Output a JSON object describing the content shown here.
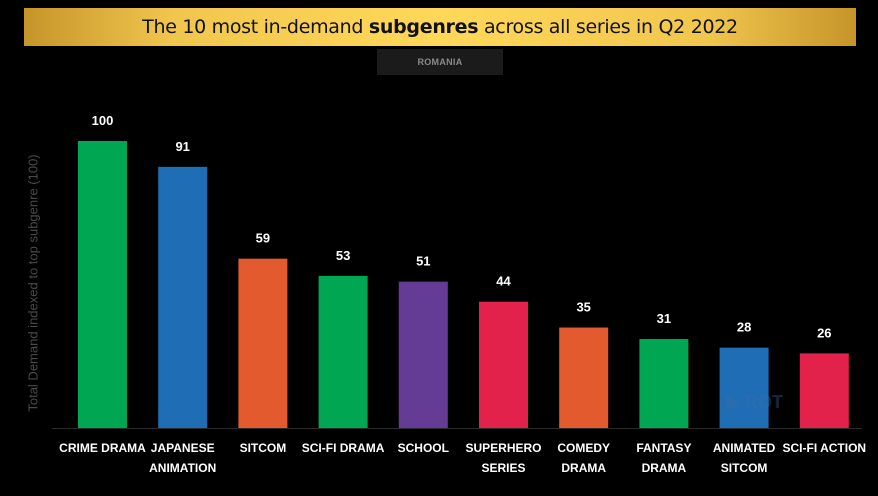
{
  "header": {
    "title_pre": "The 10 most in-demand ",
    "title_bold": "subgenres",
    "title_post": " across all series in Q2 2022",
    "region": "ROMANIA"
  },
  "watermark": {
    "icon": "play-logo-icon",
    "text": "ROT"
  },
  "chart_data": {
    "type": "bar",
    "title": "The 10 most in-demand subgenres across all series in Q2 2022",
    "subtitle": "ROMANIA",
    "xlabel": "",
    "ylabel": "Total Demand indexed to top subgenre (100)",
    "ylim": [
      0,
      100
    ],
    "grid": false,
    "categories": [
      [
        "CRIME DRAMA"
      ],
      [
        "JAPANESE",
        "ANIMATION"
      ],
      [
        "SITCOM"
      ],
      [
        "SCI-FI DRAMA"
      ],
      [
        "SCHOOL"
      ],
      [
        "SUPERHERO",
        "SERIES"
      ],
      [
        "COMEDY",
        "DRAMA"
      ],
      [
        "FANTASY",
        "DRAMA"
      ],
      [
        "ANIMATED",
        "SITCOM"
      ],
      [
        "SCI-FI ACTION"
      ]
    ],
    "values": [
      100,
      91,
      59,
      53,
      51,
      44,
      35,
      31,
      28,
      26
    ],
    "colors": [
      "#00a651",
      "#1f6db5",
      "#e35a2e",
      "#00a651",
      "#643c96",
      "#e2224a",
      "#e35a2e",
      "#00a651",
      "#1f6db5",
      "#e2224a"
    ]
  }
}
